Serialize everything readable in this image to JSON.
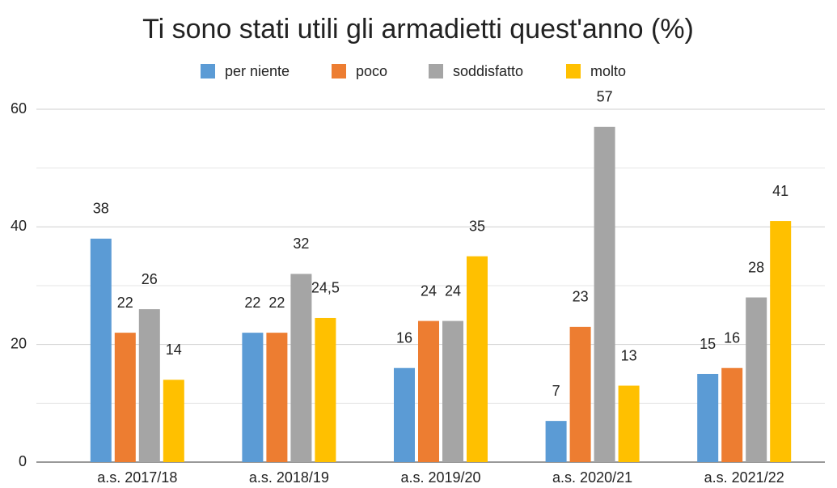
{
  "chart_data": {
    "type": "bar",
    "title": "Ti sono stati utili gli armadietti quest'anno (%)",
    "categories": [
      "a.s. 2017/18",
      "a.s. 2018/19",
      "a.s. 2019/20",
      "a.s. 2020/21",
      "a.s. 2021/22"
    ],
    "series": [
      {
        "name": "per niente",
        "color": "#5b9bd5",
        "values": [
          38,
          22,
          16,
          7,
          15
        ]
      },
      {
        "name": "poco",
        "color": "#ed7d31",
        "values": [
          22,
          22,
          24,
          23,
          16
        ]
      },
      {
        "name": "soddisfatto",
        "color": "#a5a5a5",
        "values": [
          26,
          32,
          24,
          57,
          28
        ]
      },
      {
        "name": "molto",
        "color": "#ffc000",
        "values": [
          14,
          24.5,
          35,
          13,
          41
        ],
        "value_labels": [
          "14",
          "24,5",
          "35",
          "13",
          "41"
        ]
      }
    ],
    "ylim": [
      0,
      60
    ],
    "yticks": [
      0,
      20,
      40,
      60
    ],
    "minor_yticks": [
      10,
      30,
      50
    ],
    "grid": true,
    "legend": "top"
  }
}
